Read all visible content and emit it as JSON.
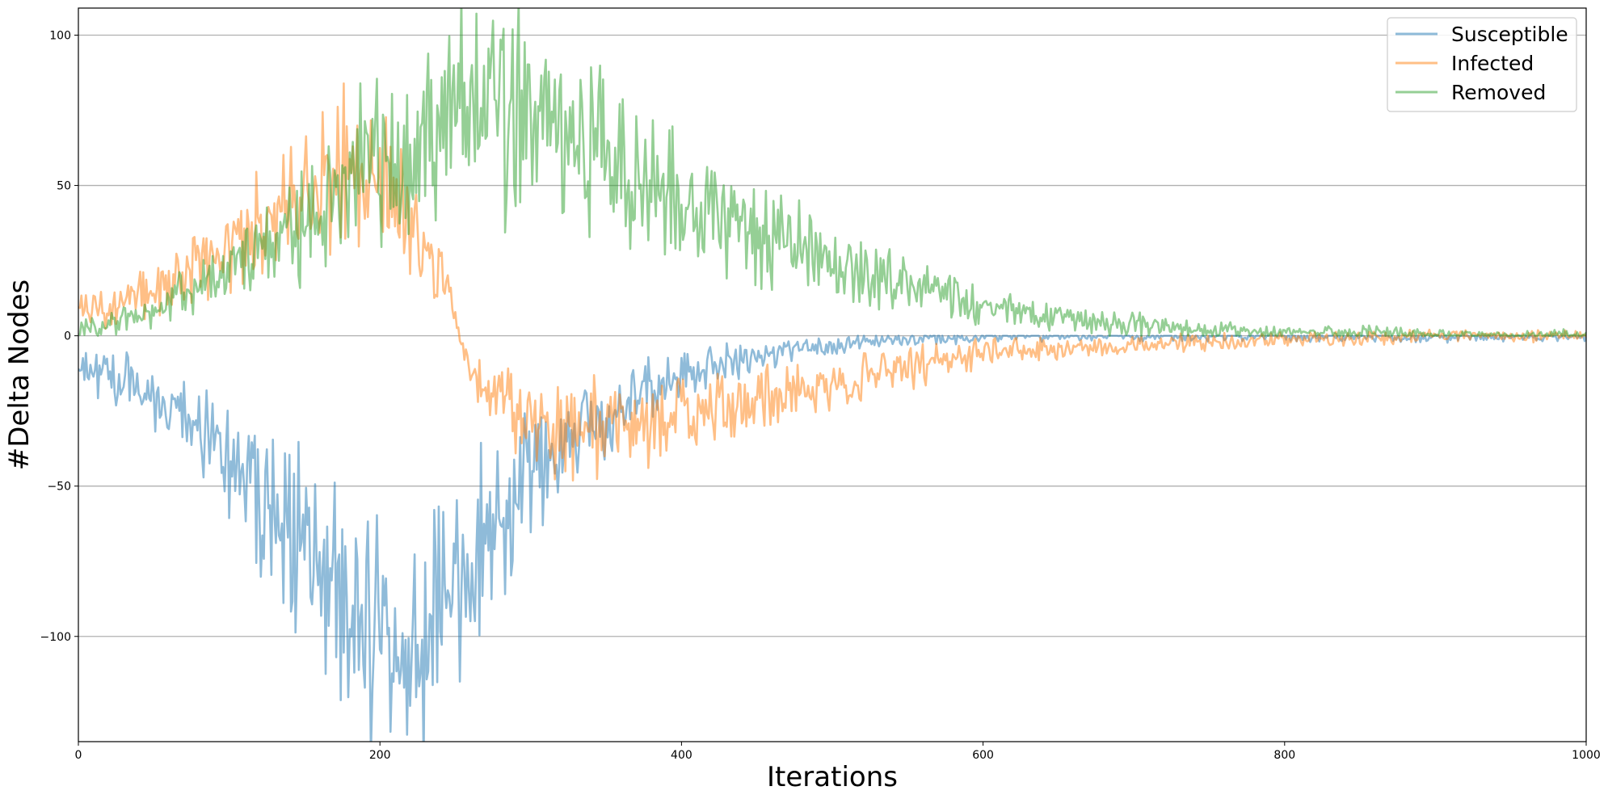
{
  "chart_data": {
    "type": "line",
    "title": "",
    "xlabel": "Iterations",
    "ylabel": "#Delta Nodes",
    "xlim": [
      0,
      1000
    ],
    "ylim": [
      -135,
      109
    ],
    "xticks": [
      0,
      200,
      400,
      600,
      800,
      1000
    ],
    "yticks": [
      -100,
      -50,
      0,
      50,
      100
    ],
    "grid": "horizontal",
    "legend_position": "top-right",
    "series": [
      {
        "name": "Susceptible",
        "color": "#1f77b4",
        "x": [
          0,
          20,
          40,
          60,
          80,
          100,
          120,
          140,
          160,
          180,
          200,
          210,
          220,
          240,
          260,
          280,
          300,
          320,
          340,
          360,
          380,
          400,
          420,
          440,
          460,
          480,
          500,
          520,
          540,
          560,
          580,
          600,
          650,
          700,
          750,
          800,
          850,
          900,
          950,
          1000
        ],
        "y": [
          -10,
          -14,
          -18,
          -22,
          -30,
          -40,
          -52,
          -66,
          -80,
          -95,
          -106,
          -110,
          -104,
          -92,
          -78,
          -62,
          -48,
          -38,
          -30,
          -24,
          -18,
          -13,
          -10,
          -8,
          -6,
          -4,
          -3,
          -2,
          -1.5,
          -1,
          -1,
          0,
          0,
          0,
          0,
          0,
          0,
          0,
          0,
          0
        ]
      },
      {
        "name": "Infected",
        "color": "#ff7f0e",
        "x": [
          0,
          20,
          40,
          60,
          80,
          100,
          120,
          140,
          160,
          180,
          200,
          210,
          220,
          240,
          250,
          260,
          280,
          300,
          320,
          340,
          360,
          380,
          400,
          420,
          440,
          460,
          480,
          500,
          520,
          540,
          560,
          580,
          600,
          650,
          700,
          750,
          800,
          850,
          900,
          950,
          1000
        ],
        "y": [
          8,
          10,
          13,
          18,
          24,
          30,
          36,
          43,
          50,
          55,
          52,
          47,
          38,
          22,
          5,
          -10,
          -22,
          -28,
          -31,
          -31,
          -30,
          -28,
          -26,
          -24,
          -22,
          -20,
          -18,
          -16,
          -14,
          -12,
          -10,
          -8,
          -6,
          -4,
          -3,
          -2,
          -1,
          -1,
          0,
          0,
          0
        ]
      },
      {
        "name": "Removed",
        "color": "#2ca02c",
        "x": [
          0,
          20,
          40,
          60,
          80,
          100,
          120,
          140,
          160,
          180,
          200,
          220,
          240,
          260,
          280,
          300,
          320,
          340,
          360,
          380,
          400,
          420,
          440,
          460,
          480,
          500,
          520,
          540,
          560,
          580,
          600,
          650,
          700,
          750,
          800,
          850,
          900,
          950,
          1000
        ],
        "y": [
          2,
          4,
          7,
          11,
          16,
          22,
          28,
          36,
          44,
          52,
          60,
          66,
          72,
          76,
          76,
          72,
          66,
          61,
          56,
          51,
          46,
          42,
          37,
          32,
          28,
          24,
          21,
          18,
          15,
          12,
          10,
          6,
          4,
          2,
          1,
          1,
          0,
          0,
          0
        ]
      }
    ]
  }
}
